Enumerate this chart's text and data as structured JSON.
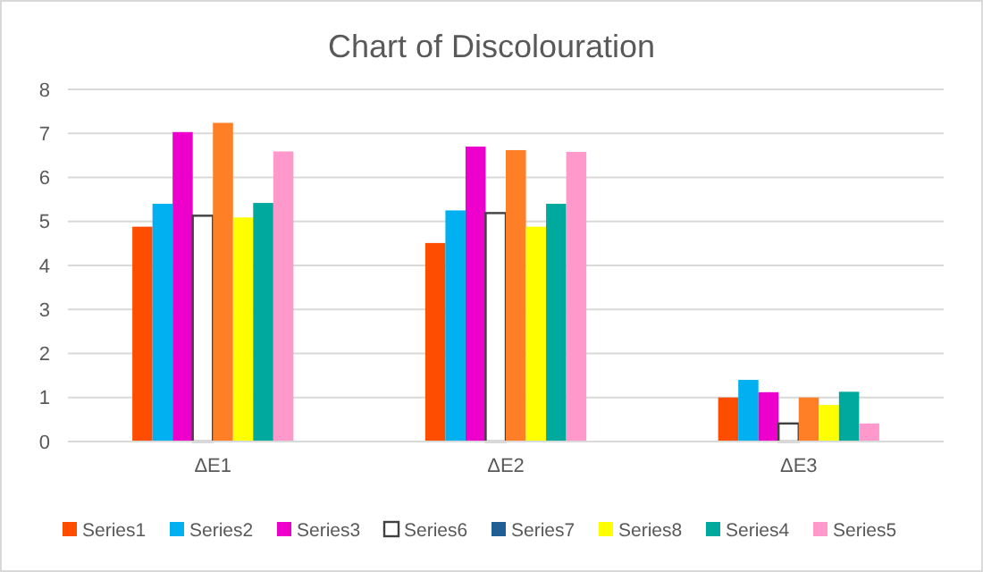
{
  "chart_data": {
    "type": "bar",
    "title": "Chart of Discolouration",
    "categories": [
      "ΔE1",
      "ΔE2",
      "ΔE3"
    ],
    "series": [
      {
        "name": "Series1",
        "color": "#ff4d00",
        "values": [
          4.88,
          4.51,
          1.0
        ]
      },
      {
        "name": "Series2",
        "color": "#00b0f0",
        "values": [
          5.4,
          5.25,
          1.4
        ]
      },
      {
        "name": "Series3",
        "color": "#ee00cc",
        "values": [
          7.03,
          6.7,
          1.12
        ]
      },
      {
        "name": "Series6",
        "color": "#ffffff",
        "values": [
          5.13,
          5.19,
          0.41
        ]
      },
      {
        "name": "Series7",
        "color": "#1f5f94",
        "values": [
          null,
          null,
          null
        ]
      },
      {
        "color": "#ff7f27",
        "values": [
          7.24,
          6.62,
          1.0
        ]
      },
      {
        "name": "Series8",
        "color": "#ffff00",
        "values": [
          5.09,
          4.88,
          0.83
        ]
      },
      {
        "name": "Series4",
        "color": "#00a99d",
        "values": [
          5.42,
          5.4,
          1.13
        ]
      },
      {
        "name": "Series5",
        "color": "#ff99cc",
        "values": [
          6.59,
          6.58,
          0.41
        ]
      }
    ],
    "ylim": [
      0,
      8
    ],
    "yticks": [
      0,
      1,
      2,
      3,
      4,
      5,
      6,
      7,
      8
    ],
    "grid": "y",
    "legend": "bottom"
  }
}
